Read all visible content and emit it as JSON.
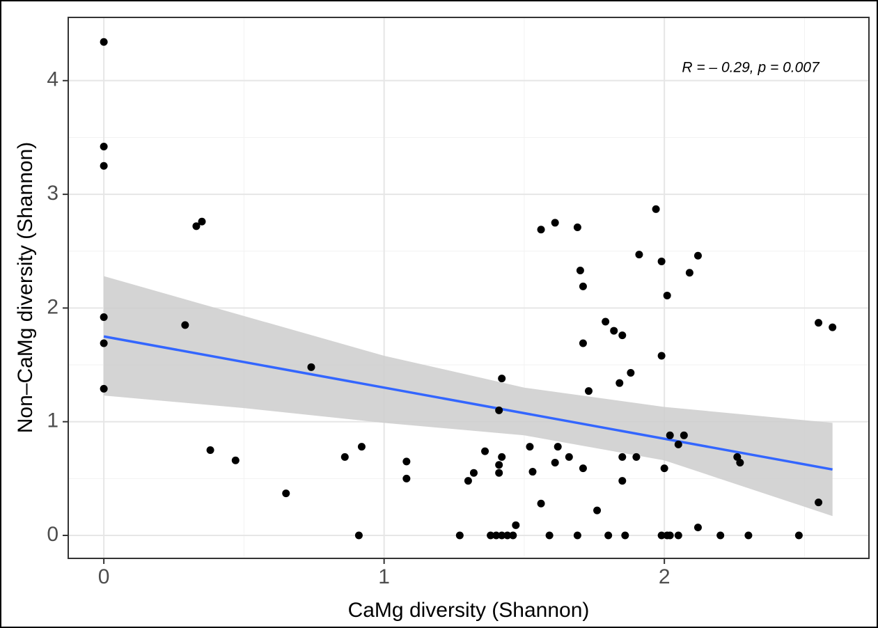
{
  "chart_data": {
    "type": "scatter",
    "x_label": "CaMg diversity (Shannon)",
    "y_label": "Non–CaMg diversity (Shannon)",
    "annotation": "R = – 0.29, p = 0.007",
    "xlim": [
      -0.127,
      2.73
    ],
    "ylim": [
      -0.202,
      4.556
    ],
    "xticks": [
      0,
      1,
      2
    ],
    "yticks": [
      0,
      1,
      2,
      3,
      4
    ],
    "xminor": [
      0.5,
      1.5,
      2.5
    ],
    "yminor": [
      0.5,
      1.5,
      2.5,
      3.5
    ],
    "grid": true,
    "color": "#000000",
    "x": [
      0,
      0,
      0,
      0,
      0,
      0,
      0.29,
      0.33,
      0.35,
      0.38,
      0.47,
      0.65,
      0.74,
      0.86,
      0.91,
      0.92,
      1.08,
      1.08,
      1.27,
      1.3,
      1.32,
      1.36,
      1.38,
      1.4,
      1.41,
      1.42,
      1.41,
      1.41,
      1.42,
      1.42,
      1.44,
      1.46,
      1.47,
      1.52,
      1.53,
      1.56,
      1.56,
      1.59,
      1.61,
      1.61,
      1.62,
      1.66,
      1.69,
      1.69,
      1.7,
      1.71,
      1.71,
      1.71,
      1.73,
      1.76,
      1.79,
      1.8,
      1.82,
      1.85,
      1.84,
      1.85,
      1.85,
      1.86,
      1.88,
      1.9,
      1.91,
      1.97,
      1.99,
      1.99,
      1.99,
      2.0,
      2.01,
      2.01,
      2.02,
      2.02,
      2.05,
      2.05,
      2.07,
      2.09,
      2.12,
      2.12,
      2.2,
      2.26,
      2.27,
      2.3,
      2.48,
      2.55,
      2.55,
      2.6
    ],
    "values": [
      4.34,
      3.42,
      3.25,
      1.92,
      1.69,
      1.29,
      1.85,
      2.72,
      2.76,
      0.75,
      0.66,
      0.37,
      1.48,
      0.69,
      0,
      0.78,
      0.65,
      0.5,
      0,
      0.48,
      0.55,
      0.74,
      0,
      0,
      1.1,
      1.38,
      0.62,
      0.55,
      0.69,
      0,
      0,
      0,
      0.09,
      0.78,
      0.56,
      2.69,
      0.28,
      0,
      2.75,
      0.64,
      0.78,
      0.69,
      0,
      2.71,
      2.33,
      2.19,
      0.59,
      1.69,
      1.27,
      0.22,
      1.88,
      0,
      1.8,
      1.76,
      1.34,
      0.69,
      0.48,
      0,
      1.43,
      0.69,
      2.47,
      2.87,
      2.41,
      1.58,
      0,
      0.59,
      0,
      2.11,
      0.88,
      0,
      0.8,
      0,
      0.88,
      2.31,
      2.46,
      0.07,
      0,
      0.69,
      0.64,
      0,
      0,
      1.87,
      0.29,
      1.83
    ],
    "fit": {
      "x": [
        0,
        2.6
      ],
      "values": [
        1.75,
        0.58
      ],
      "color": "#3366ff"
    },
    "band": {
      "x": [
        0,
        0.5,
        1,
        1.5,
        2,
        2.6
      ],
      "upper": [
        2.28,
        1.93,
        1.58,
        1.3,
        1.13,
        0.99
      ],
      "lower": [
        1.23,
        1.12,
        0.99,
        0.88,
        0.66,
        0.17
      ],
      "color": "#cccccc"
    }
  }
}
